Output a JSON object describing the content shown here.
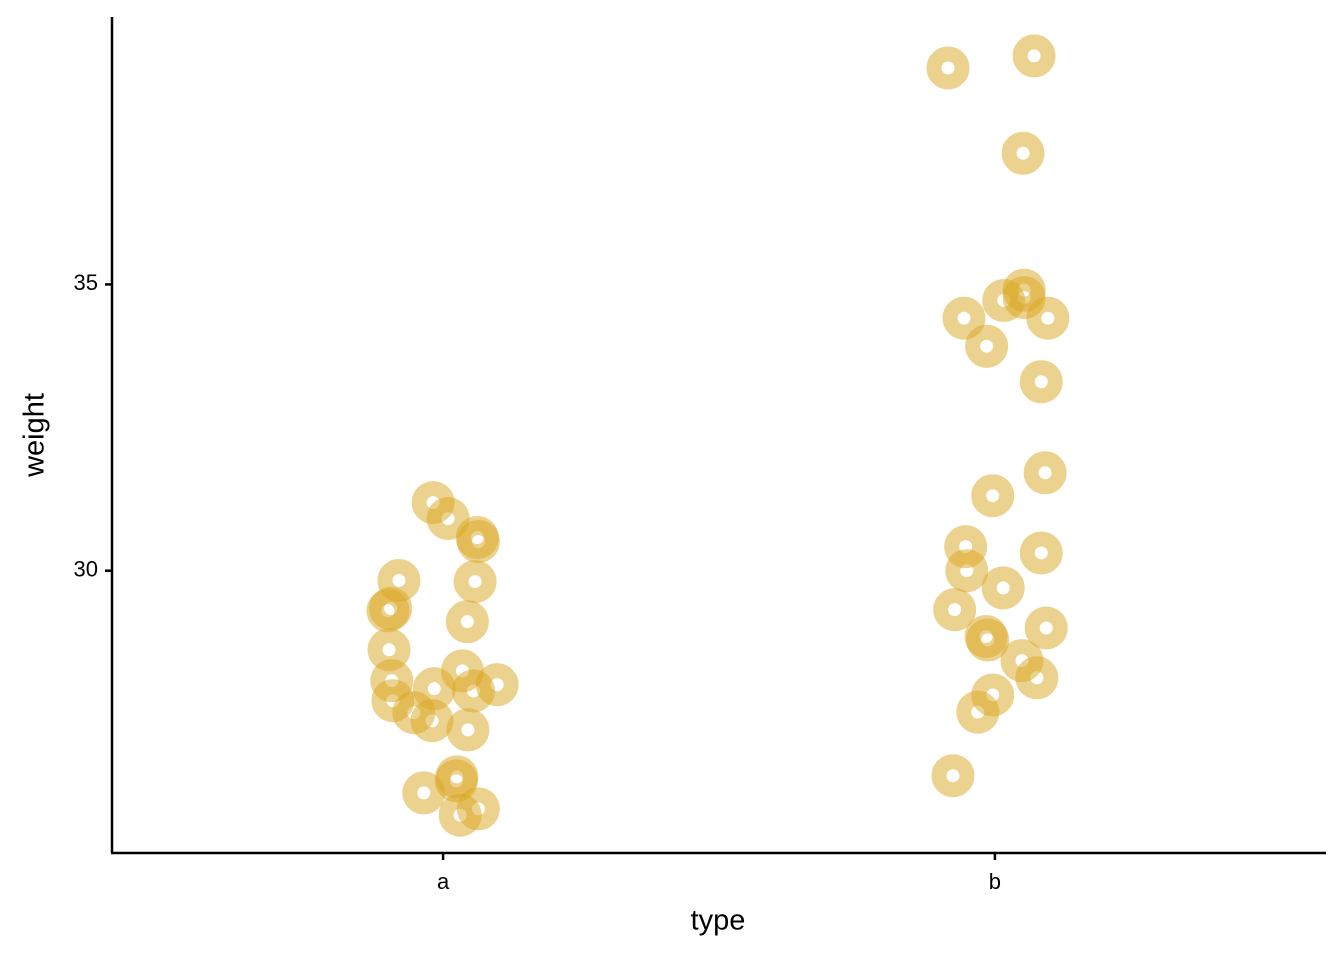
{
  "chart_data": {
    "type": "scatter",
    "xlabel": "type",
    "ylabel": "weight",
    "xlim": [
      0.4,
      2.6
    ],
    "xticks": [
      {
        "value": 1,
        "label": "a"
      },
      {
        "value": 2,
        "label": "b"
      }
    ],
    "ylim": [
      25.07,
      39.67
    ],
    "yticks": [
      30,
      35
    ],
    "color": "#daa520",
    "grid": false,
    "x": [
      0.982,
      1.009,
      1.062,
      1.064,
      0.92,
      1.058,
      0.905,
      0.9,
      1.044,
      0.902,
      1.035,
      0.907,
      0.984,
      1.055,
      1.098,
      0.909,
      0.947,
      0.98,
      1.045,
      1.025,
      1.024,
      0.965,
      1.031,
      1.064,
      1.915,
      2.071,
      2.051,
      2.053,
      2.016,
      2.053,
      1.944,
      2.096,
      1.985,
      2.084,
      2.091,
      1.996,
      1.947,
      2.084,
      1.949,
      2.015,
      1.927,
      2.093,
      1.984,
      1.987,
      2.049,
      2.076,
      1.996,
      1.969,
      1.924
    ],
    "values": [
      31.19,
      30.91,
      30.58,
      30.51,
      29.83,
      29.81,
      29.34,
      29.3,
      29.11,
      28.62,
      28.25,
      28.08,
      27.94,
      27.9,
      28.01,
      27.73,
      27.52,
      27.38,
      27.22,
      26.4,
      26.33,
      26.12,
      25.73,
      25.84,
      38.78,
      38.99,
      37.29,
      34.9,
      34.72,
      34.77,
      34.41,
      34.41,
      33.92,
      33.3,
      31.71,
      31.31,
      30.42,
      30.31,
      30.0,
      29.7,
      29.32,
      29.0,
      28.85,
      28.79,
      28.43,
      28.13,
      27.83,
      27.53,
      26.42
    ]
  }
}
